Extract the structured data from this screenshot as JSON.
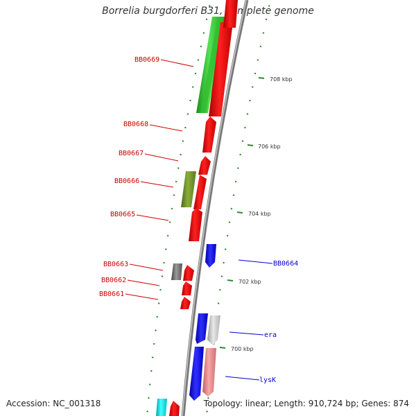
{
  "title": "Borrelia burgdorferi B31, complete genome",
  "footer": {
    "accession": "Accession: NC_001318",
    "summary": "Topology: linear; Length: 910,724 bp; Genes: 874"
  },
  "colors": {
    "backbone": "#8a8a8a",
    "tick": "#2b8a2b",
    "left_label": "#cc0000",
    "right_label": "#0000cc"
  },
  "scale_ticks": [
    "708 kbp",
    "706 kbp",
    "704 kbp",
    "702 kbp",
    "700 kbp"
  ],
  "gene_labels_left": [
    "BB0669",
    "BB0668",
    "BB0667",
    "BB0666",
    "BB0665",
    "BB0663",
    "BB0662",
    "BB0661"
  ],
  "gene_labels_right": [
    "BB0664",
    "era",
    "lysK"
  ]
}
